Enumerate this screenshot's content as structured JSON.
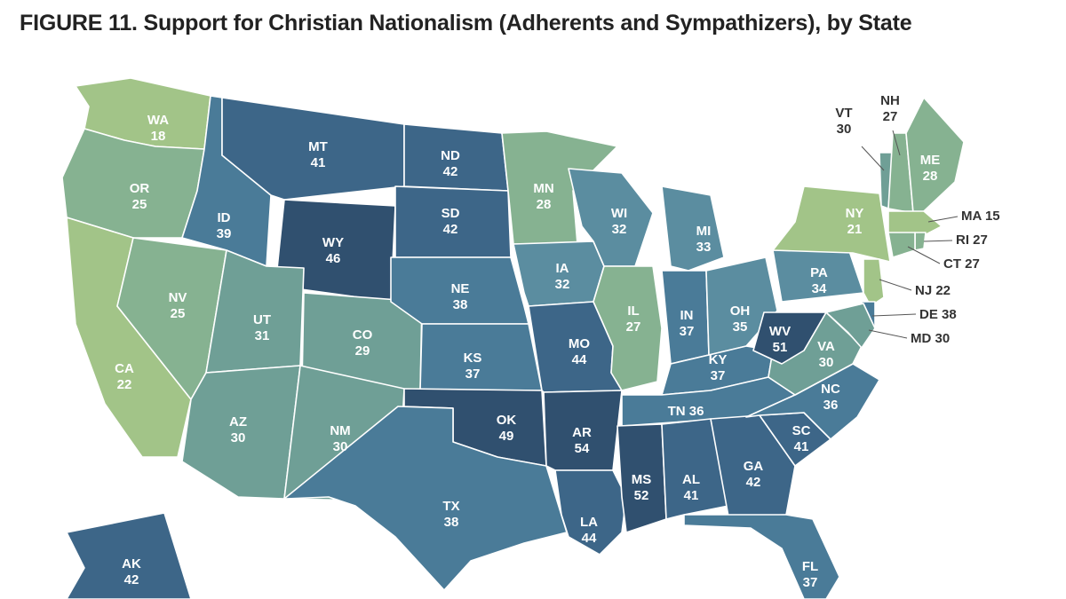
{
  "title": "FIGURE 11.  Support for Christian Nationalism (Adherents and Sympathizers), by State",
  "color_scale": [
    "#a2c488",
    "#86b291",
    "#6f9f96",
    "#5b8da0",
    "#4a7b98",
    "#3d6688",
    "#30506f"
  ],
  "chart_data": {
    "type": "choropleth",
    "metric": "Support for Christian Nationalism (Adherents and Sympathizers)",
    "values": [
      {
        "state": "WA",
        "value": 18
      },
      {
        "state": "OR",
        "value": 25
      },
      {
        "state": "CA",
        "value": 22
      },
      {
        "state": "NV",
        "value": 25
      },
      {
        "state": "ID",
        "value": 39
      },
      {
        "state": "MT",
        "value": 41
      },
      {
        "state": "WY",
        "value": 46
      },
      {
        "state": "UT",
        "value": 31
      },
      {
        "state": "CO",
        "value": 29
      },
      {
        "state": "AZ",
        "value": 30
      },
      {
        "state": "NM",
        "value": 30
      },
      {
        "state": "ND",
        "value": 42
      },
      {
        "state": "SD",
        "value": 42
      },
      {
        "state": "NE",
        "value": 38
      },
      {
        "state": "KS",
        "value": 37
      },
      {
        "state": "OK",
        "value": 49
      },
      {
        "state": "TX",
        "value": 38
      },
      {
        "state": "MN",
        "value": 28
      },
      {
        "state": "IA",
        "value": 32
      },
      {
        "state": "MO",
        "value": 44
      },
      {
        "state": "AR",
        "value": 54
      },
      {
        "state": "LA",
        "value": 44
      },
      {
        "state": "WI",
        "value": 32
      },
      {
        "state": "IL",
        "value": 27
      },
      {
        "state": "MI",
        "value": 33
      },
      {
        "state": "IN",
        "value": 37
      },
      {
        "state": "OH",
        "value": 35
      },
      {
        "state": "KY",
        "value": 37
      },
      {
        "state": "TN",
        "value": 36
      },
      {
        "state": "MS",
        "value": 52
      },
      {
        "state": "AL",
        "value": 41
      },
      {
        "state": "GA",
        "value": 42
      },
      {
        "state": "FL",
        "value": 37
      },
      {
        "state": "SC",
        "value": 41
      },
      {
        "state": "NC",
        "value": 36
      },
      {
        "state": "VA",
        "value": 30
      },
      {
        "state": "WV",
        "value": 51
      },
      {
        "state": "PA",
        "value": 34
      },
      {
        "state": "NY",
        "value": 21
      },
      {
        "state": "VT",
        "value": 30
      },
      {
        "state": "NH",
        "value": 27
      },
      {
        "state": "ME",
        "value": 28
      },
      {
        "state": "MA",
        "value": 15
      },
      {
        "state": "RI",
        "value": 27
      },
      {
        "state": "CT",
        "value": 27
      },
      {
        "state": "NJ",
        "value": 22
      },
      {
        "state": "DE",
        "value": 38
      },
      {
        "state": "MD",
        "value": 30
      },
      {
        "state": "AK",
        "value": 42
      }
    ],
    "callout_labels": [
      "MA 15",
      "RI 27",
      "CT 27",
      "NJ 22",
      "DE 38",
      "MD 30",
      "TN 36"
    ]
  }
}
